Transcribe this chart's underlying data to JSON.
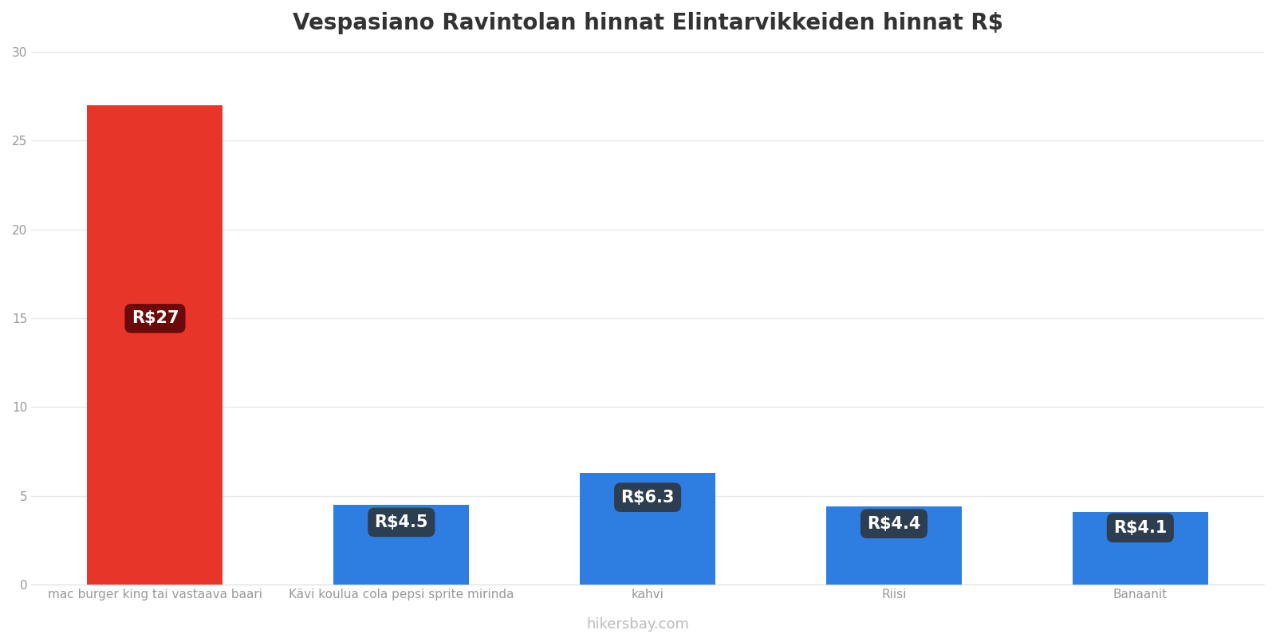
{
  "title": "Vespasiano Ravintolan hinnat Elintarvikkeiden hinnat R$",
  "categories": [
    "mac burger king tai vastaava baari",
    "Kävi koulua cola pepsi sprite mirinda",
    "kahvi",
    "Riisi",
    "Banaanit"
  ],
  "values": [
    27,
    4.5,
    6.3,
    4.4,
    4.1
  ],
  "bar_colors": [
    "#e8352a",
    "#2e7de0",
    "#2e7de0",
    "#2e7de0",
    "#2e7de0"
  ],
  "label_bg_colors": [
    "#6b0a0a",
    "#2c3e50",
    "#2c3e50",
    "#2c3e50",
    "#2c3e50"
  ],
  "labels": [
    "R$27",
    "R$4.5",
    "R$6.3",
    "R$4.4",
    "R$4.1"
  ],
  "ylim": [
    0,
    30
  ],
  "yticks": [
    0,
    5,
    10,
    15,
    20,
    25,
    30
  ],
  "footer": "hikersbay.com",
  "background_color": "#ffffff",
  "grid_color": "#e8e8e8",
  "title_fontsize": 20,
  "tick_label_fontsize": 11,
  "footer_fontsize": 13,
  "label_fontsize": 15
}
